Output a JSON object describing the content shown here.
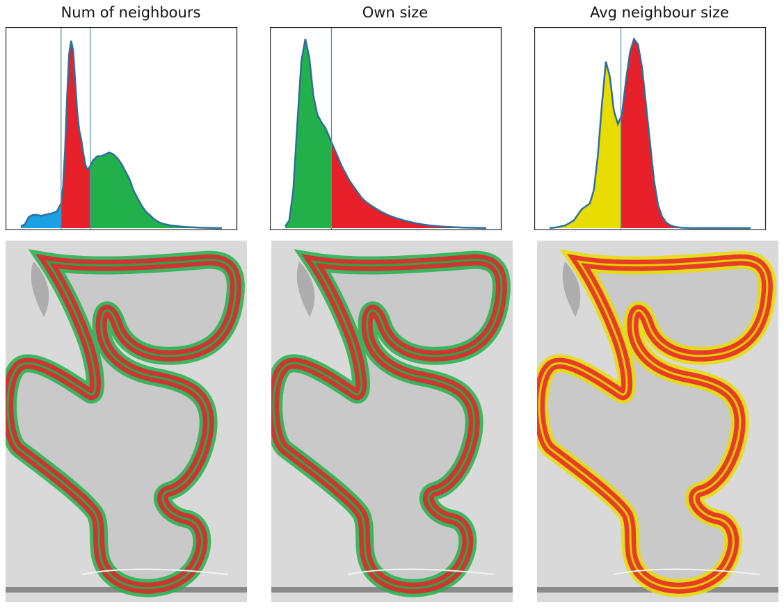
{
  "colors": {
    "blue": "#1aa1e3",
    "red": "#e8202a",
    "green": "#22b04b",
    "yellow": "#e8dc00",
    "curve": "#2c6f9a",
    "threshold": "#4a90b0"
  },
  "charts": [
    {
      "title": "Num of neighbours",
      "chart_data": {
        "type": "area",
        "x": [
          0,
          0.02,
          0.04,
          0.06,
          0.08,
          0.1,
          0.12,
          0.14,
          0.16,
          0.18,
          0.2,
          0.21,
          0.22,
          0.23,
          0.24,
          0.25,
          0.26,
          0.27,
          0.28,
          0.29,
          0.3,
          0.31,
          0.32,
          0.33,
          0.34,
          0.35,
          0.36,
          0.37,
          0.38,
          0.4,
          0.42,
          0.44,
          0.46,
          0.48,
          0.5,
          0.52,
          0.54,
          0.56,
          0.58,
          0.6,
          0.62,
          0.64,
          0.66,
          0.68,
          0.7,
          0.74,
          0.78,
          0.82,
          0.86,
          0.9,
          0.94,
          0.98,
          1.0
        ],
        "density": [
          0.01,
          0.02,
          0.06,
          0.07,
          0.07,
          0.065,
          0.07,
          0.075,
          0.08,
          0.09,
          0.13,
          0.22,
          0.42,
          0.7,
          0.92,
          0.99,
          0.94,
          0.78,
          0.62,
          0.52,
          0.47,
          0.4,
          0.34,
          0.31,
          0.32,
          0.34,
          0.36,
          0.37,
          0.38,
          0.38,
          0.39,
          0.4,
          0.39,
          0.37,
          0.34,
          0.3,
          0.26,
          0.2,
          0.16,
          0.12,
          0.09,
          0.07,
          0.05,
          0.035,
          0.025,
          0.015,
          0.01,
          0.006,
          0.004,
          0.002,
          0.001,
          0,
          0
        ],
        "regions": [
          {
            "from": 0,
            "to": 0.2,
            "color": "blue"
          },
          {
            "from": 0.2,
            "to": 0.345,
            "color": "red"
          },
          {
            "from": 0.345,
            "to": 1.0,
            "color": "green"
          }
        ],
        "thresholds": [
          0.2,
          0.345
        ],
        "ylim": [
          0,
          1.0
        ],
        "xticks": 5
      }
    },
    {
      "title": "Own size",
      "chart_data": {
        "type": "area",
        "x": [
          0,
          0.02,
          0.04,
          0.06,
          0.08,
          0.1,
          0.12,
          0.14,
          0.16,
          0.18,
          0.2,
          0.22,
          0.24,
          0.26,
          0.28,
          0.3,
          0.32,
          0.34,
          0.36,
          0.38,
          0.4,
          0.44,
          0.48,
          0.52,
          0.56,
          0.6,
          0.64,
          0.68,
          0.72,
          0.76,
          0.8,
          0.84,
          0.88,
          0.92,
          0.96,
          1.0
        ],
        "density": [
          0.01,
          0.04,
          0.2,
          0.55,
          0.88,
          1.0,
          0.9,
          0.7,
          0.6,
          0.56,
          0.53,
          0.48,
          0.43,
          0.38,
          0.33,
          0.29,
          0.25,
          0.22,
          0.19,
          0.16,
          0.14,
          0.11,
          0.085,
          0.065,
          0.05,
          0.038,
          0.028,
          0.02,
          0.014,
          0.01,
          0.007,
          0.005,
          0.003,
          0.002,
          0.001,
          0
        ],
        "regions": [
          {
            "from": 0,
            "to": 0.23,
            "color": "green"
          },
          {
            "from": 0.23,
            "to": 1.0,
            "color": "red"
          }
        ],
        "thresholds": [
          0.23
        ],
        "ylim": [
          0,
          1.0
        ],
        "xticks": 5
      }
    },
    {
      "title": "Avg neighbour size",
      "chart_data": {
        "type": "area",
        "x": [
          0,
          0.04,
          0.08,
          0.12,
          0.16,
          0.2,
          0.22,
          0.24,
          0.26,
          0.28,
          0.3,
          0.32,
          0.34,
          0.36,
          0.38,
          0.4,
          0.42,
          0.44,
          0.46,
          0.48,
          0.5,
          0.52,
          0.54,
          0.56,
          0.58,
          0.6,
          0.62,
          0.64,
          0.66,
          0.68,
          0.7,
          0.72,
          0.76,
          0.8,
          0.84,
          0.88,
          0.92,
          0.96,
          1.0
        ],
        "density": [
          0,
          0.005,
          0.015,
          0.04,
          0.1,
          0.13,
          0.2,
          0.38,
          0.65,
          0.88,
          0.8,
          0.62,
          0.55,
          0.6,
          0.78,
          0.93,
          1.0,
          0.97,
          0.85,
          0.65,
          0.45,
          0.25,
          0.12,
          0.06,
          0.03,
          0.015,
          0.008,
          0.004,
          0.002,
          0.001,
          0,
          0,
          0,
          0,
          0,
          0,
          0,
          0,
          0
        ],
        "regions": [
          {
            "from": 0,
            "to": 0.355,
            "color": "yellow"
          },
          {
            "from": 0.355,
            "to": 1.0,
            "color": "red"
          }
        ],
        "thresholds": [
          0.355
        ],
        "ylim": [
          0,
          1.0
        ],
        "xticks": 5
      }
    }
  ],
  "tissue_colors": [
    {
      "outer": "green",
      "inner": "red",
      "halo": "#8c8fe8"
    },
    {
      "outer": "green",
      "inner": "red",
      "halo": "#9fb89a"
    },
    {
      "outer": "yellow",
      "inner": "red",
      "halo": "#c9c66a"
    }
  ]
}
